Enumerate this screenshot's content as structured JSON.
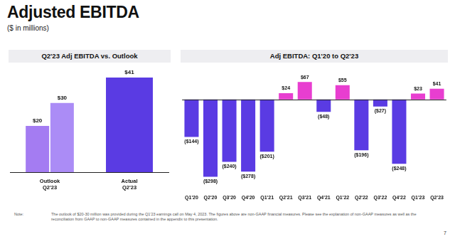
{
  "header": {
    "title": "Adjusted EBITDA",
    "subtitle": "($ in millions)"
  },
  "chart_data": [
    {
      "type": "bar",
      "title": "Q2'23 Adj EBITDA vs. Outlook",
      "categories": [
        [
          "Outlook",
          "Q2'23"
        ],
        [
          "Actual",
          "Q2'23"
        ]
      ],
      "series": [
        {
          "color": "#a47cf2",
          "values": [
            20,
            null
          ],
          "value_labels": [
            "$20",
            null
          ]
        },
        {
          "colors": [
            "#ab8cf6",
            "#5a3be3"
          ],
          "values": [
            30,
            41
          ],
          "value_labels": [
            "$30",
            "$41"
          ]
        }
      ],
      "ylim": [
        0,
        45
      ],
      "grid": false,
      "data_labels": true,
      "tick_labels": "x"
    },
    {
      "type": "bar",
      "title": "Adj EBITDA: Q1'20 to Q2'23",
      "categories": [
        "Q1'20",
        "Q2'20",
        "Q3'20",
        "Q4'20",
        "Q1'21",
        "Q2'21",
        "Q3'21",
        "Q4'21",
        "Q1'22",
        "Q2'22",
        "Q3'22",
        "Q4'22",
        "Q1'23",
        "Q2'23"
      ],
      "values": [
        -144,
        -298,
        -240,
        -278,
        -201,
        24,
        67,
        -48,
        55,
        -196,
        -27,
        -248,
        23,
        41
      ],
      "value_labels": [
        "($144)",
        "($298)",
        "($240)",
        "($278)",
        "($201)",
        "$24",
        "$67",
        "($48)",
        "$55",
        "($196)",
        "($27)",
        "($248)",
        "$23",
        "$41"
      ],
      "colors": [
        "#5a3be3",
        "#5a3be3",
        "#5a3be3",
        "#5a3be3",
        "#5a3be3",
        "#e83ed0",
        "#e83ed0",
        "#5a3be3",
        "#e83ed0",
        "#5a3be3",
        "#5a3be3",
        "#5a3be3",
        "#e83ed0",
        "#e83ed0"
      ],
      "ylim": [
        -350,
        120
      ],
      "grid": false,
      "data_labels": true,
      "tick_labels": "x"
    }
  ],
  "footer": {
    "note_label": "Note:",
    "note": "The outlook of $20-30 million was provided during the Q1'23 earnings call on May 4, 2023. The figures above are non-GAAP financial measures. Please see the explanation of non-GAAP measures as well as the reconciliation from GAAP to non-GAAP measures contained in the appendix to this presentation.",
    "page": "7"
  }
}
